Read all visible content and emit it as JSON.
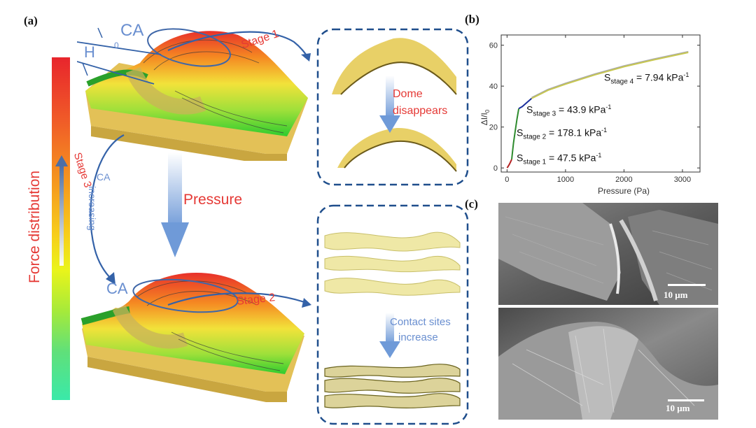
{
  "panel_a": {
    "letter": "(a)",
    "colorbar_label": "Force distribution",
    "ca0_label": "CA",
    "ca0_sub": "0",
    "h_label": "H",
    "stage1_label": "Stage 1",
    "stage2_label": "Stage 2",
    "stage3_label": "Stage 3",
    "ca_increasing_1": "CA",
    "ca_increasing_2": "increasing",
    "ca_label": "CA",
    "pressure_label": "Pressure",
    "dome_disappears_1": "Dome",
    "dome_disappears_2": "disappears",
    "contact_sites_1": "Contact sites",
    "contact_sites_2": "increase",
    "colors": {
      "annotation_red": "#e53935",
      "annotation_blue": "#6a8fd0",
      "arrow_blue": "#3462a8",
      "dashed_box": "#1f4e8c"
    }
  },
  "panel_b": {
    "letter": "(b)",
    "xlabel": "Pressure (Pa)",
    "ylabel": "ΔI/I",
    "ylabel_sub": "0",
    "stage_labels": [
      {
        "s": "S",
        "sub": "stage 4",
        "text": " = 7.94 kPa",
        "sup": "-1"
      },
      {
        "s": "S",
        "sub": "stage 3",
        "text": " = 43.9 kPa",
        "sup": "-1"
      },
      {
        "s": "S",
        "sub": "stage 2",
        "text": " = 178.1 kPa",
        "sup": "-1"
      },
      {
        "s": "S",
        "sub": "stage 1",
        "text": " = 47.5 kPa",
        "sup": "-1"
      }
    ]
  },
  "panel_c": {
    "letter": "(c)",
    "scale_top": "10 μm",
    "scale_bottom": "10 μm"
  },
  "chart_data": {
    "type": "line",
    "title": "",
    "xlabel": "Pressure (Pa)",
    "ylabel": "ΔI/I0",
    "xlim": [
      -100,
      3300
    ],
    "ylim": [
      -2,
      65
    ],
    "xticks": [
      0,
      1000,
      2000,
      3000
    ],
    "yticks": [
      0,
      20,
      40,
      60
    ],
    "series": [
      {
        "color": "#b22222",
        "x": [
          0,
          20,
          40,
          60,
          80
        ],
        "y": [
          0,
          0.8,
          1.8,
          3.0,
          4.2
        ]
      },
      {
        "color": "#2e8b2e",
        "x": [
          80,
          110,
          140,
          170,
          200
        ],
        "y": [
          4.2,
          12,
          18,
          24,
          29
        ]
      },
      {
        "color": "#1a2f9c",
        "x": [
          200,
          260,
          320,
          380,
          420
        ],
        "y": [
          29,
          30,
          31.5,
          33,
          34
        ]
      },
      {
        "color": "#c8c850",
        "x": [
          420,
          700,
          1000,
          1500,
          2000,
          2500,
          3100
        ],
        "y": [
          34,
          38,
          41,
          45.5,
          49.5,
          52.8,
          56.5
        ]
      }
    ]
  }
}
